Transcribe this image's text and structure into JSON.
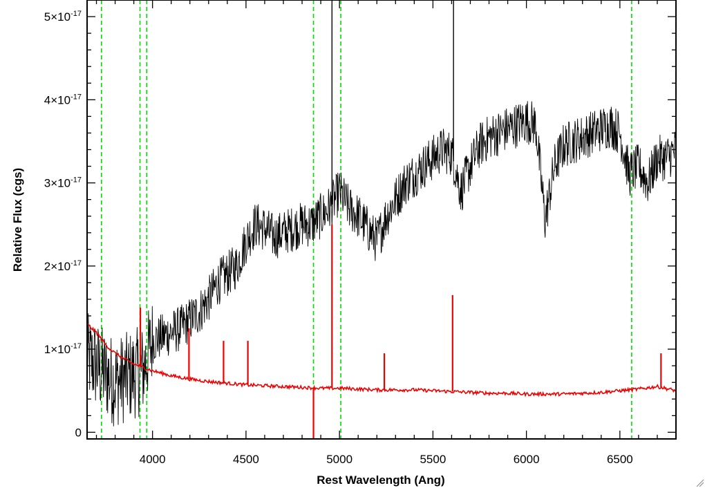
{
  "chart_data": {
    "type": "line",
    "xlabel": "Rest Wavelength (Ang)",
    "ylabel": "Relative Flux (cgs)",
    "xlim": [
      3650,
      6800
    ],
    "ylim": [
      -8e-19,
      5.2e-17
    ],
    "x_ticks": [
      4000,
      4500,
      5000,
      5500,
      6000,
      6500
    ],
    "x_tick_labels": [
      "4000",
      "4500",
      "5000",
      "5500",
      "6000",
      "6500"
    ],
    "y_ticks": [
      {
        "value": 0,
        "mantissa": "0",
        "exponent": ""
      },
      {
        "value": 1e-17,
        "mantissa": "1×10",
        "exponent": "-17"
      },
      {
        "value": 2e-17,
        "mantissa": "2×10",
        "exponent": "-17"
      },
      {
        "value": 3e-17,
        "mantissa": "3×10",
        "exponent": "-17"
      },
      {
        "value": 4e-17,
        "mantissa": "4×10",
        "exponent": "-17"
      },
      {
        "value": 5e-17,
        "mantissa": "5×10",
        "exponent": "-17"
      }
    ],
    "grid": false,
    "colors": {
      "spectrum": "#000000",
      "model": "#ee0000",
      "lines": "#00dd00"
    },
    "reference_lines": [
      3727,
      3933,
      3969,
      4861,
      5007,
      6563
    ],
    "series": [
      {
        "color": "#000000",
        "x": [
          3650,
          3700,
          3750,
          3800,
          3850,
          3900,
          3950,
          4000,
          4050,
          4100,
          4150,
          4200,
          4250,
          4300,
          4350,
          4400,
          4450,
          4500,
          4550,
          4600,
          4650,
          4700,
          4750,
          4800,
          4850,
          4900,
          4950,
          5000,
          5050,
          5100,
          5150,
          5200,
          5250,
          5300,
          5350,
          5400,
          5450,
          5500,
          5550,
          5600,
          5650,
          5700,
          5750,
          5800,
          5850,
          5900,
          5950,
          6000,
          6050,
          6100,
          6150,
          6200,
          6250,
          6300,
          6350,
          6400,
          6450,
          6500,
          6550,
          6600,
          6650,
          6700,
          6750,
          6800
        ],
        "y": [
          9e-18,
          8e-18,
          7e-18,
          6e-18,
          6.5e-18,
          7e-18,
          7.5e-18,
          1.1e-17,
          1.15e-17,
          1.2e-17,
          1.25e-17,
          1.35e-17,
          1.45e-17,
          1.6e-17,
          1.8e-17,
          1.9e-17,
          2e-17,
          2.3e-17,
          2.5e-17,
          2.45e-17,
          2.35e-17,
          2.4e-17,
          2.45e-17,
          2.5e-17,
          2.5e-17,
          2.6e-17,
          2.7e-17,
          2.9e-17,
          2.7e-17,
          2.6e-17,
          2.45e-17,
          2.3e-17,
          2.6e-17,
          2.8e-17,
          3e-17,
          3.1e-17,
          3.2e-17,
          3.3e-17,
          3.4e-17,
          3.35e-17,
          2.9e-17,
          3.2e-17,
          3.45e-17,
          3.55e-17,
          3.6e-17,
          3.65e-17,
          3.7e-17,
          3.75e-17,
          3.7e-17,
          2.55e-17,
          3.2e-17,
          3.45e-17,
          3.5e-17,
          3.55e-17,
          3.6e-17,
          3.65e-17,
          3.7e-17,
          3.6e-17,
          3.1e-17,
          3.2e-17,
          3e-17,
          3.3e-17,
          3.3e-17,
          3.4e-17
        ]
      },
      {
        "color": "#ee0000",
        "x": [
          3650,
          3700,
          3750,
          3800,
          3850,
          3900,
          3950,
          4000,
          4100,
          4200,
          4300,
          4400,
          4500,
          4600,
          4700,
          4800,
          4900,
          5000,
          5100,
          5200,
          5300,
          5400,
          5500,
          5600,
          5700,
          5800,
          5900,
          6000,
          6100,
          6200,
          6300,
          6400,
          6500,
          6600,
          6700,
          6800
        ],
        "y": [
          1.3e-17,
          1.2e-17,
          1.05e-17,
          9.5e-18,
          8.8e-18,
          8.2e-18,
          7.8e-18,
          7.4e-18,
          6.8e-18,
          6.4e-18,
          6.1e-18,
          5.9e-18,
          5.7e-18,
          5.6e-18,
          5.5e-18,
          5.4e-18,
          5.3e-18,
          5.3e-18,
          5.2e-18,
          5.1e-18,
          5.1e-18,
          5.1e-18,
          5e-18,
          4.9e-18,
          4.8e-18,
          4.7e-18,
          4.7e-18,
          4.6e-18,
          4.6e-18,
          4.6e-18,
          4.7e-18,
          4.8e-18,
          5e-18,
          5.2e-18,
          5.5e-18,
          5e-18
        ]
      }
    ],
    "spikes": [
      {
        "series": 1,
        "x": 3935,
        "y": 1.5e-17
      },
      {
        "series": 1,
        "x": 4195,
        "y": 1.25e-17
      },
      {
        "series": 1,
        "x": 4380,
        "y": 1.1e-17
      },
      {
        "series": 1,
        "x": 4510,
        "y": 1.1e-17
      },
      {
        "series": 1,
        "x": 4960,
        "y": 2.5e-17
      },
      {
        "series": 1,
        "x": 5240,
        "y": 9.5e-18
      },
      {
        "series": 1,
        "x": 5605,
        "y": 1.65e-17
      },
      {
        "series": 1,
        "x": 6720,
        "y": 9.5e-18
      },
      {
        "series": 1,
        "x": 4861,
        "y": -8e-19
      },
      {
        "series": 0,
        "x": 4960,
        "y": 5.2e-17
      },
      {
        "series": 0,
        "x": 5610,
        "y": 5.2e-17
      }
    ]
  }
}
